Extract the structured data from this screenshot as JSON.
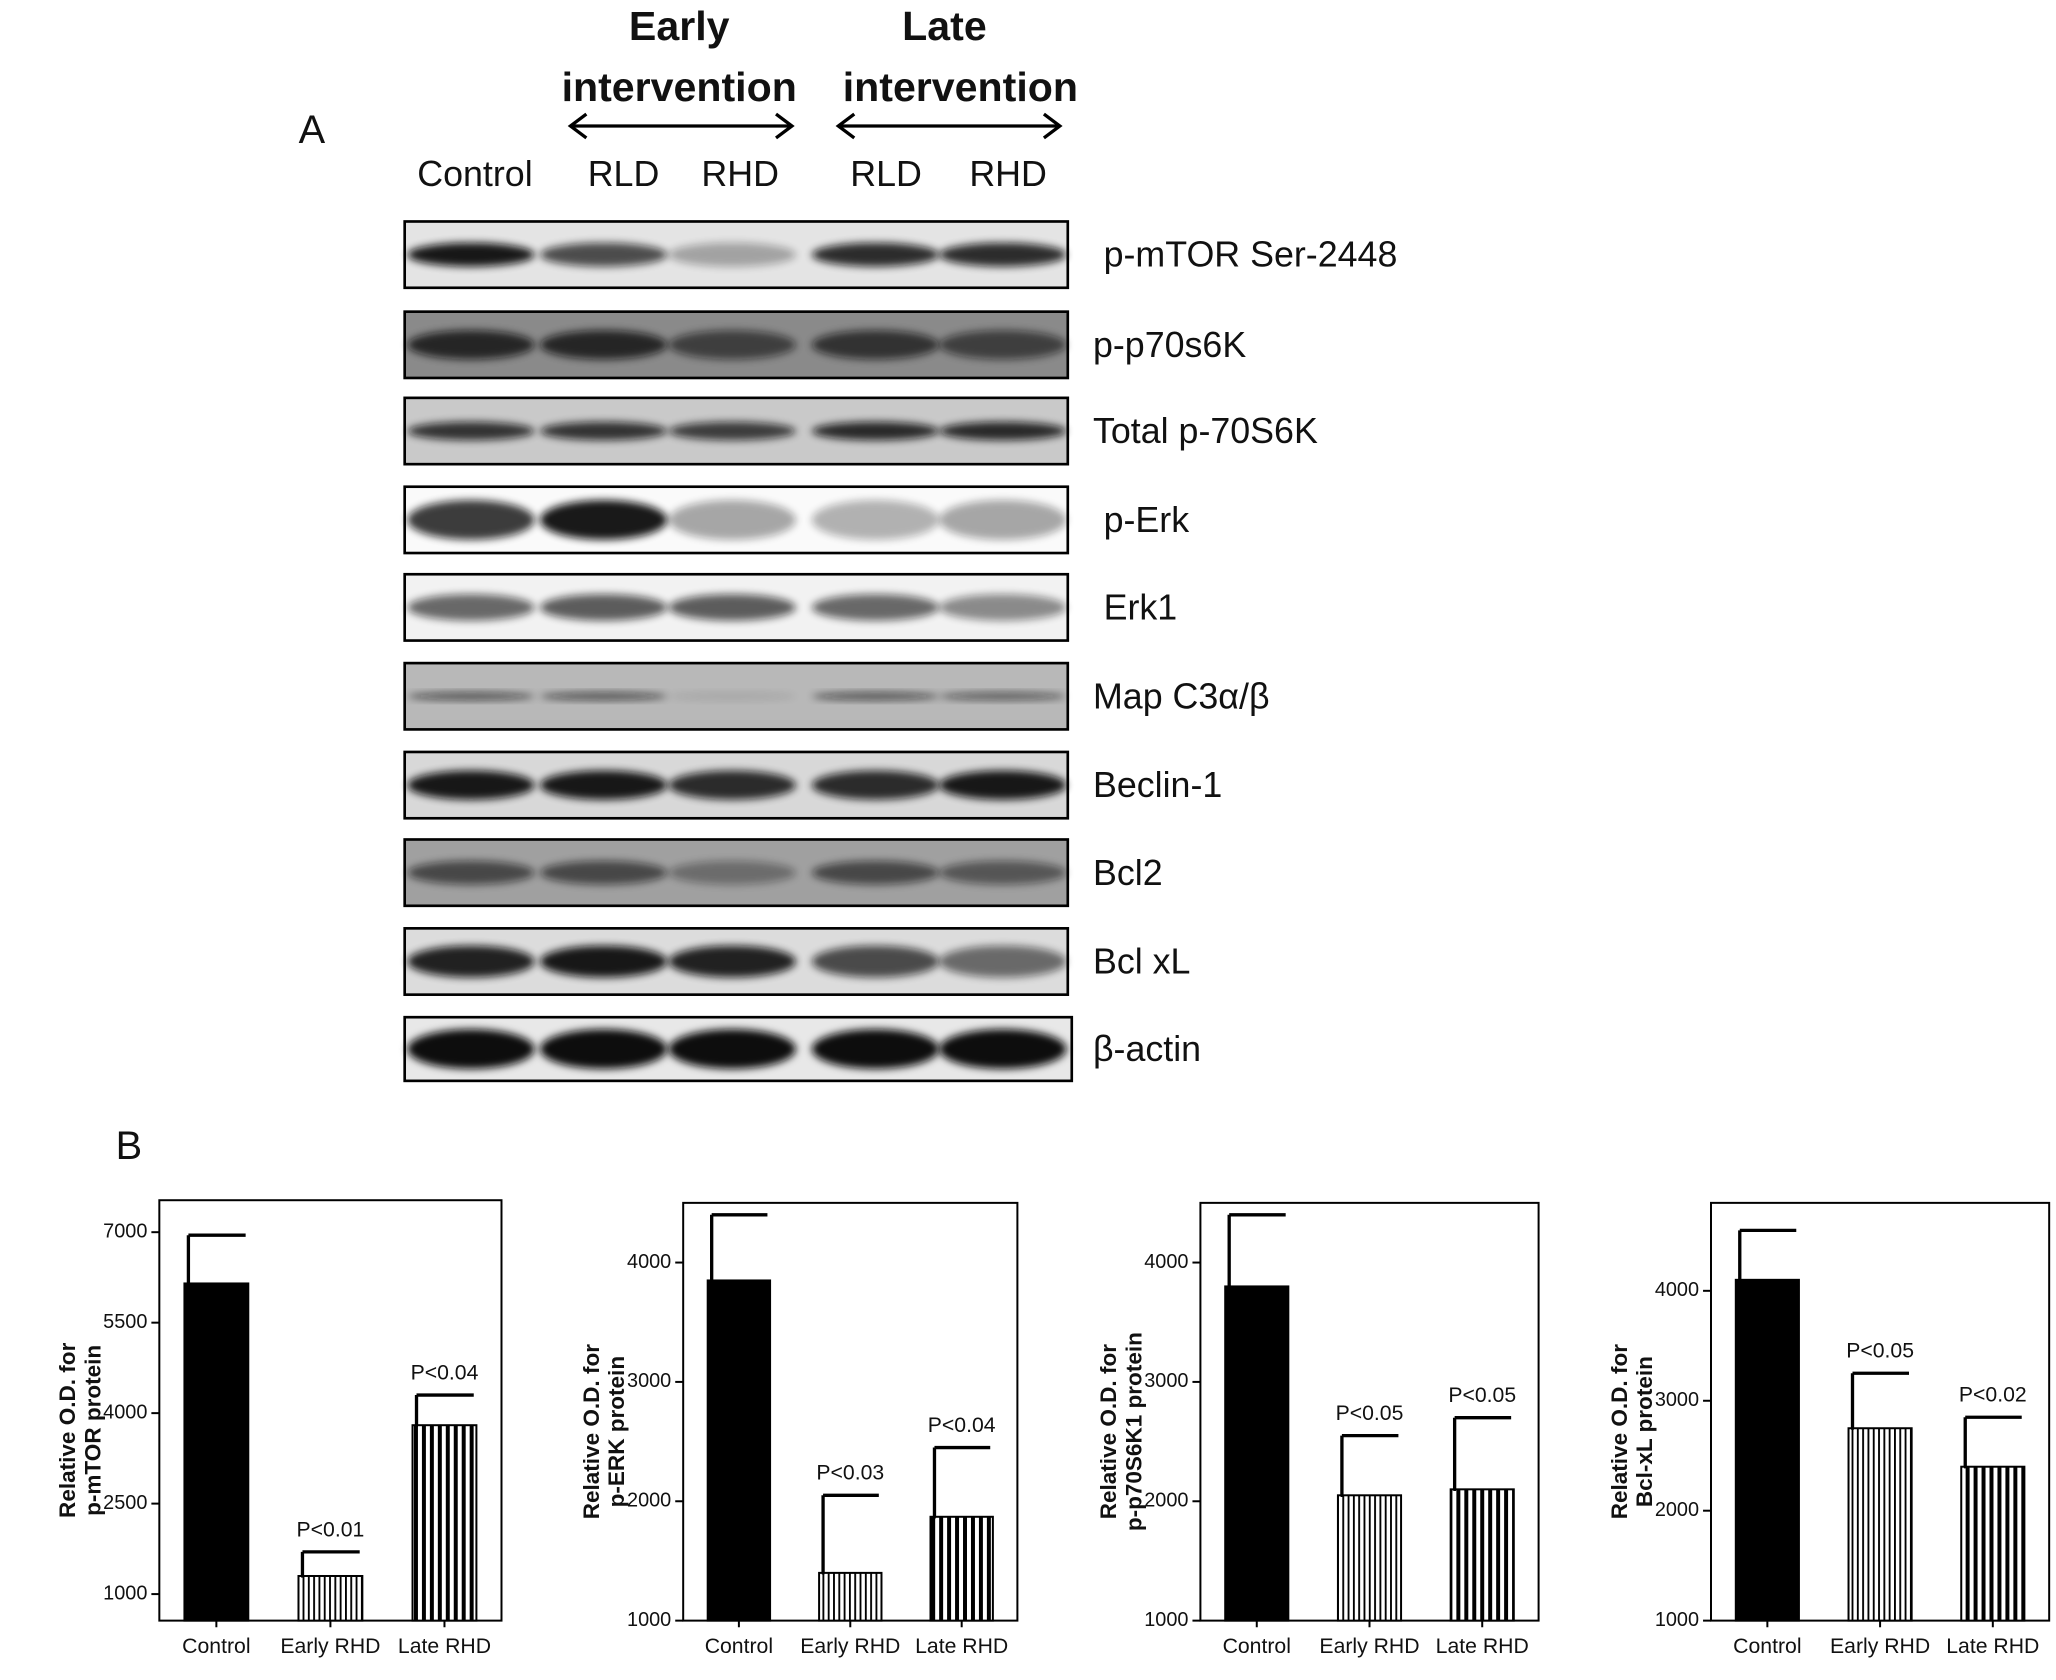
{
  "panel_a": {
    "label": "A",
    "groups": [
      {
        "title": [
          "Early",
          "intervention"
        ]
      },
      {
        "title": [
          "Late",
          "intervention"
        ]
      }
    ],
    "lanes": [
      "Control",
      "RLD",
      "RHD",
      "RLD",
      "RHD"
    ],
    "blots": [
      "p-mTOR Ser-2448",
      "p-p70s6K",
      "Total p-70S6K",
      "p-Erk",
      "Erk1",
      "Map C3α/β",
      "Beclin-1",
      "Bcl2",
      "Bcl xL",
      "β-actin"
    ]
  },
  "panel_b": {
    "label": "B"
  },
  "chart_data": [
    {
      "type": "bar",
      "ylabel": [
        "Relative O.D. for",
        "p-mTOR protein"
      ],
      "categories": [
        "Control",
        "Early RHD",
        "Late RHD"
      ],
      "values": [
        6150,
        1300,
        3800
      ],
      "errors": [
        800,
        400,
        500
      ],
      "color": "#000000",
      "patterns": [
        "solid",
        "thin-stripes",
        "thick-stripes"
      ],
      "ylim": [
        560,
        7530
      ],
      "yticks": [
        1000,
        2500,
        4000,
        5500,
        7000
      ],
      "grid": false,
      "annotations": [
        {
          "x": "Early RHD",
          "text": "P<0.01"
        },
        {
          "x": "Late RHD",
          "text": "P<0.04"
        }
      ]
    },
    {
      "type": "bar",
      "ylabel": [
        "Relative O.D. for",
        "p-ERK protein"
      ],
      "categories": [
        "Control",
        "Early RHD",
        "Late RHD"
      ],
      "values": [
        3850,
        1400,
        1870
      ],
      "errors": [
        550,
        650,
        580
      ],
      "color": "#000000",
      "patterns": [
        "solid",
        "thin-stripes",
        "thick-stripes"
      ],
      "ylim": [
        1000,
        4500
      ],
      "yticks": [
        1000,
        2000,
        3000,
        4000
      ],
      "grid": false,
      "annotations": [
        {
          "x": "Early RHD",
          "text": "P<0.03"
        },
        {
          "x": "Late RHD",
          "text": "P<0.04"
        }
      ]
    },
    {
      "type": "bar",
      "ylabel": [
        "Relative O.D. for",
        "p-p70S6K1 protein"
      ],
      "categories": [
        "Control",
        "Early RHD",
        "Late RHD"
      ],
      "values": [
        3800,
        2050,
        2100
      ],
      "errors": [
        600,
        500,
        600
      ],
      "color": "#000000",
      "patterns": [
        "solid",
        "thin-stripes",
        "thick-stripes"
      ],
      "ylim": [
        1000,
        4500
      ],
      "yticks": [
        1000,
        2000,
        3000,
        4000
      ],
      "grid": false,
      "annotations": [
        {
          "x": "Early RHD",
          "text": "P<0.05"
        },
        {
          "x": "Late RHD",
          "text": "P<0.05"
        }
      ]
    },
    {
      "type": "bar",
      "ylabel": [
        "Relative O.D. for",
        "Bcl-xL protein"
      ],
      "categories": [
        "Control",
        "Early RHD",
        "Late RHD"
      ],
      "values": [
        4100,
        2750,
        2400
      ],
      "errors": [
        450,
        500,
        450
      ],
      "color": "#000000",
      "patterns": [
        "solid",
        "thin-stripes",
        "thick-stripes"
      ],
      "ylim": [
        1000,
        4800
      ],
      "yticks": [
        1000,
        2000,
        3000,
        4000
      ],
      "grid": false,
      "annotations": [
        {
          "x": "Early RHD",
          "text": "P<0.05"
        },
        {
          "x": "Late RHD",
          "text": "P<0.02"
        }
      ]
    }
  ]
}
